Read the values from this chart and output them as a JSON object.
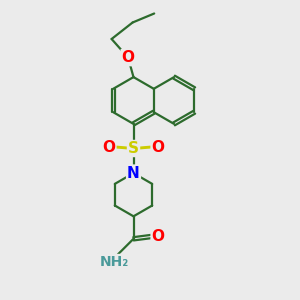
{
  "background_color": "#ebebeb",
  "bond_color": "#2d6b2d",
  "atom_colors": {
    "O": "#ff0000",
    "S": "#cccc00",
    "N": "#0000ff",
    "N_amide": "#4a9a9a"
  },
  "line_width": 1.6,
  "dbo": 0.055,
  "figsize": [
    3.0,
    3.0
  ],
  "dpi": 100
}
